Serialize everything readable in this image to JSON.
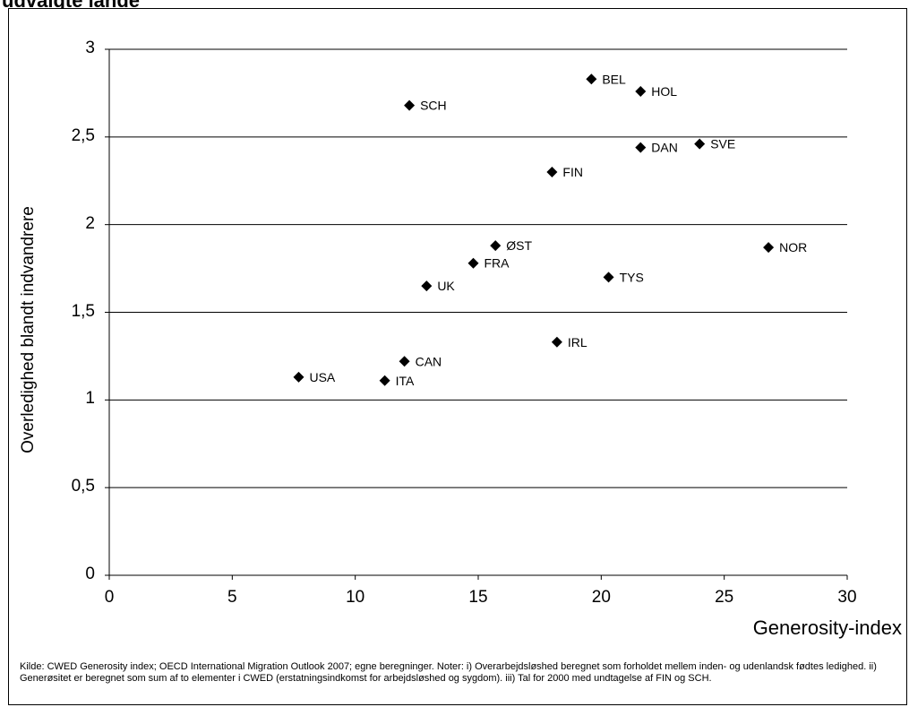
{
  "header": {
    "title_fragment": "udvalgte lande"
  },
  "chart_data": {
    "type": "scatter",
    "title": "udvalgte lande",
    "xlabel": "Generosity-index",
    "ylabel": "Overledighed blandt indvandrere",
    "xlim": [
      0,
      30
    ],
    "ylim": [
      0,
      3
    ],
    "x_ticks": [
      0,
      5,
      10,
      15,
      20,
      25,
      30
    ],
    "x_tick_labels": [
      "0",
      "5",
      "10",
      "15",
      "20",
      "25",
      "30"
    ],
    "y_ticks": [
      0,
      0.5,
      1,
      1.5,
      2,
      2.5,
      3
    ],
    "y_tick_labels": [
      "0",
      "0,5",
      "1",
      "1,5",
      "2",
      "2,5",
      "3"
    ],
    "grid": "horizontal",
    "marker": "diamond",
    "marker_color": "#000000",
    "points": [
      {
        "label": "BEL",
        "x": 19.6,
        "y": 2.83
      },
      {
        "label": "HOL",
        "x": 21.6,
        "y": 2.76
      },
      {
        "label": "SCH",
        "x": 12.2,
        "y": 2.68
      },
      {
        "label": "SVE",
        "x": 24.0,
        "y": 2.46
      },
      {
        "label": "DAN",
        "x": 21.6,
        "y": 2.44
      },
      {
        "label": "FIN",
        "x": 18.0,
        "y": 2.3
      },
      {
        "label": "ØST",
        "x": 15.7,
        "y": 1.88
      },
      {
        "label": "NOR",
        "x": 26.8,
        "y": 1.87
      },
      {
        "label": "FRA",
        "x": 14.8,
        "y": 1.78
      },
      {
        "label": "TYS",
        "x": 20.3,
        "y": 1.7
      },
      {
        "label": "UK",
        "x": 12.9,
        "y": 1.65
      },
      {
        "label": "IRL",
        "x": 18.2,
        "y": 1.33
      },
      {
        "label": "CAN",
        "x": 12.0,
        "y": 1.22
      },
      {
        "label": "USA",
        "x": 7.7,
        "y": 1.13
      },
      {
        "label": "ITA",
        "x": 11.2,
        "y": 1.11
      }
    ]
  },
  "footnote": "Kilde: CWED Generosity index; OECD International Migration Outlook 2007; egne beregninger. Noter: i) Overarbejdsløshed beregnet som forholdet mellem inden- og udenlandsk fødtes ledighed. ii) Generøsitet er beregnet som sum af to elementer i CWED (erstatningsindkomst for arbejdsløshed og sygdom). iii) Tal for 2000 med undtagelse af FIN og SCH."
}
